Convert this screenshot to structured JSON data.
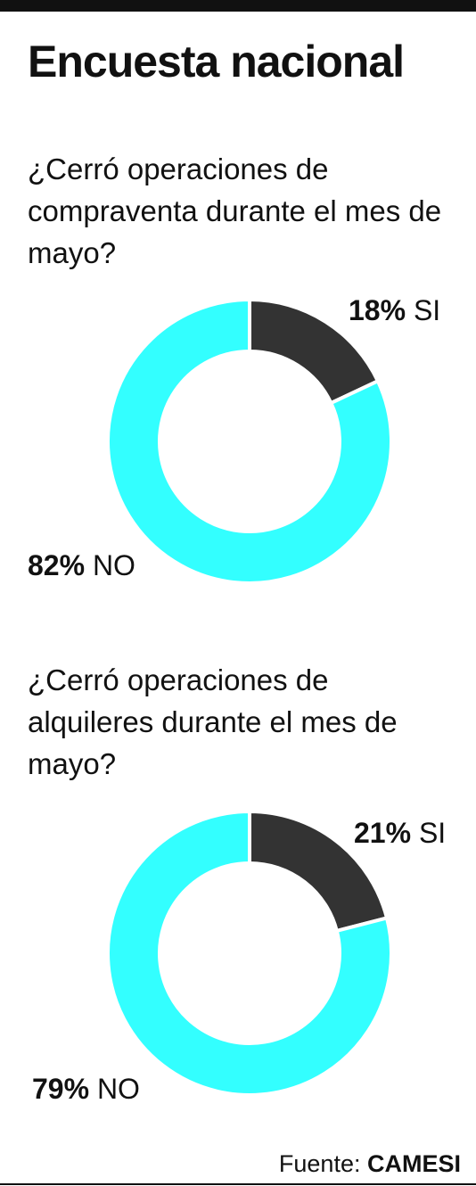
{
  "title": "Encuesta nacional",
  "colors": {
    "si": "#333333",
    "no": "#33ffff",
    "separator": "#ffffff"
  },
  "chart_data": [
    {
      "type": "pie",
      "question": "¿Cerró operaciones de compraventa durante el mes de mayo?",
      "categories": [
        "SI",
        "NO"
      ],
      "values": [
        18,
        82
      ],
      "labels": [
        {
          "pct": "18%",
          "name": "SI"
        },
        {
          "pct": "82%",
          "name": "NO"
        }
      ]
    },
    {
      "type": "pie",
      "question": "¿Cerró operaciones de alquileres durante el mes de mayo?",
      "categories": [
        "SI",
        "NO"
      ],
      "values": [
        21,
        79
      ],
      "labels": [
        {
          "pct": "21%",
          "name": "SI"
        },
        {
          "pct": "79%",
          "name": "NO"
        }
      ]
    }
  ],
  "source": {
    "prefix": "Fuente:",
    "name": "CAMESI"
  }
}
